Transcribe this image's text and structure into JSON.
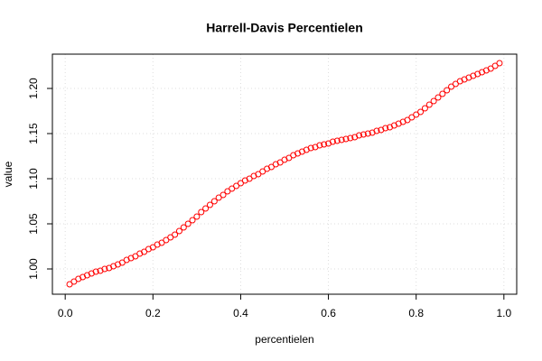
{
  "chart_data": {
    "type": "scatter",
    "title": "Harrell-Davis Percentielen",
    "x_label": "percentielen",
    "y_label": "value",
    "color": "#ff0000",
    "grid": true,
    "xlim": [
      -0.0292,
      1.0292
    ],
    "ylim": [
      0.972,
      1.238
    ],
    "xticks": [
      {
        "value": 0,
        "label": "0.0"
      },
      0.2,
      0.4,
      0.6,
      0.8,
      {
        "value": 1,
        "label": "1.0"
      }
    ],
    "yticks": [
      {
        "value": 1,
        "label": "1.00"
      },
      1.05,
      {
        "value": 1.1,
        "label": "1.10"
      },
      1.15,
      {
        "value": 1.2,
        "label": "1.20"
      }
    ],
    "x": [
      0.01,
      0.02,
      0.03,
      0.04,
      0.05,
      0.06,
      0.07,
      0.08,
      0.09,
      0.1,
      0.11,
      0.12,
      0.13,
      0.14,
      0.15,
      0.16,
      0.17,
      0.18,
      0.19,
      0.2,
      0.21,
      0.22,
      0.23,
      0.24,
      0.25,
      0.26,
      0.27,
      0.28,
      0.29,
      0.3,
      0.31,
      0.32,
      0.33,
      0.34,
      0.35,
      0.36,
      0.37,
      0.38,
      0.39,
      0.4,
      0.41,
      0.42,
      0.43,
      0.44,
      0.45,
      0.46,
      0.47,
      0.48,
      0.49,
      0.5,
      0.51,
      0.52,
      0.53,
      0.54,
      0.55,
      0.56,
      0.57,
      0.58,
      0.59,
      0.6,
      0.61,
      0.62,
      0.63,
      0.64,
      0.65,
      0.66,
      0.67,
      0.68,
      0.69,
      0.7,
      0.71,
      0.72,
      0.73,
      0.74,
      0.75,
      0.76,
      0.77,
      0.78,
      0.79,
      0.8,
      0.81,
      0.82,
      0.83,
      0.84,
      0.85,
      0.86,
      0.87,
      0.88,
      0.89,
      0.9,
      0.91,
      0.92,
      0.93,
      0.94,
      0.95,
      0.96,
      0.97,
      0.98,
      0.99
    ],
    "values": [
      0.983,
      0.986,
      0.989,
      0.991,
      0.993,
      0.995,
      0.997,
      0.998,
      1.0,
      1.001,
      1.003,
      1.005,
      1.007,
      1.01,
      1.012,
      1.014,
      1.017,
      1.019,
      1.022,
      1.024,
      1.027,
      1.029,
      1.032,
      1.035,
      1.038,
      1.042,
      1.046,
      1.05,
      1.054,
      1.058,
      1.063,
      1.067,
      1.071,
      1.075,
      1.079,
      1.082,
      1.086,
      1.089,
      1.092,
      1.095,
      1.098,
      1.1,
      1.103,
      1.105,
      1.108,
      1.111,
      1.113,
      1.116,
      1.118,
      1.121,
      1.123,
      1.126,
      1.128,
      1.13,
      1.132,
      1.134,
      1.135,
      1.137,
      1.138,
      1.139,
      1.141,
      1.142,
      1.143,
      1.144,
      1.145,
      1.146,
      1.148,
      1.149,
      1.15,
      1.151,
      1.153,
      1.154,
      1.156,
      1.157,
      1.159,
      1.161,
      1.163,
      1.165,
      1.168,
      1.171,
      1.174,
      1.178,
      1.182,
      1.186,
      1.19,
      1.194,
      1.198,
      1.202,
      1.205,
      1.208,
      1.21,
      1.212,
      1.214,
      1.216,
      1.218,
      1.22,
      1.222,
      1.225,
      1.228
    ]
  }
}
